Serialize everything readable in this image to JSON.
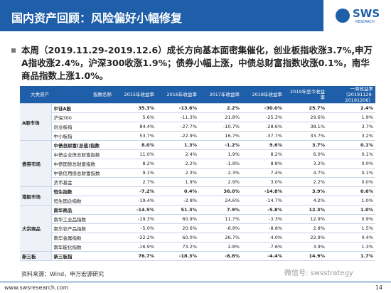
{
  "header": {
    "title": "国内资产回顾：风险偏好小幅修复",
    "logo": "SWS",
    "logo_sub": "RESEARCH"
  },
  "bullet": "本周（2019.11.29-2019.12.6）成长方向基本面密集催化，创业板指收涨3.7%,申万A指收涨2.4%，沪深300收涨1.9%；债券小幅上涨，中债总财富指数收涨0.1%，南华商品指数上涨1.0%。",
  "table": {
    "columns": [
      "大类资产",
      "指数名称",
      "2015年收益率",
      "2016年收益率",
      "2017年收益率",
      "2018年收益率",
      "2019年至今收益率",
      "一周收益率（20191129-20191206）"
    ],
    "groups": [
      {
        "name": "A股市场",
        "rows": [
          [
            "中证A股",
            "35.3%",
            "-13.6%",
            "2.2%",
            "-30.0%",
            "25.7%",
            "2.4%"
          ],
          [
            "沪深300",
            "5.6%",
            "-11.3%",
            "21.8%",
            "-25.3%",
            "29.6%",
            "1.9%"
          ],
          [
            "创业板指",
            "84.4%",
            "-27.7%",
            "-10.7%",
            "-28.6%",
            "38.1%",
            "3.7%"
          ],
          [
            "中小板指",
            "53.7%",
            "-22.9%",
            "16.7%",
            "-37.7%",
            "33.7%",
            "3.2%"
          ]
        ]
      },
      {
        "name": "债券市场",
        "rows": [
          [
            "中债总财富(总值)指数",
            "8.0%",
            "1.3%",
            "-1.2%",
            "9.6%",
            "3.7%",
            "0.1%"
          ],
          [
            "中债企业债总财富指数",
            "11.0%",
            "2.4%",
            "1.9%",
            "8.2%",
            "6.0%",
            "0.1%"
          ],
          [
            "中债国债总财富指数",
            "8.2%",
            "2.2%",
            "-1.8%",
            "8.8%",
            "3.2%",
            "0.0%"
          ],
          [
            "中债信用债总财富指数",
            "9.1%",
            "2.3%",
            "2.3%",
            "7.4%",
            "4.7%",
            "0.1%"
          ],
          [
            "货币基金",
            "2.7%",
            "1.9%",
            "2.9%",
            "3.0%",
            "2.2%",
            "0.0%"
          ]
        ]
      },
      {
        "name": "港股市场",
        "rows": [
          [
            "恒生指数",
            "-7.2%",
            "0.4%",
            "36.0%",
            "-14.8%",
            "3.9%",
            "0.6%"
          ],
          [
            "恒生国企指数",
            "-19.4%",
            "-2.8%",
            "24.6%",
            "-14.7%",
            "4.2%",
            "1.0%"
          ]
        ]
      },
      {
        "name": "大宗商品",
        "rows": [
          [
            "南华商品",
            "-14.5%",
            "51.3%",
            "7.9%",
            "-5.8%",
            "12.3%",
            "1.0%"
          ],
          [
            "南华工业品指数",
            "-19.3%",
            "60.9%",
            "11.7%",
            "-3.3%",
            "12.9%",
            "0.9%"
          ],
          [
            "南华农产品指数",
            "-5.0%",
            "20.6%",
            "-6.8%",
            "-8.8%",
            "2.8%",
            "1.5%"
          ],
          [
            "南华金属指数",
            "-22.2%",
            "60.0%",
            "26.7%",
            "-4.0%",
            "22.9%",
            "0.4%"
          ],
          [
            "南华能化指数",
            "-16.9%",
            "73.2%",
            "2.8%",
            "-7.6%",
            "3.9%",
            "1.3%"
          ]
        ]
      },
      {
        "name": "新三板",
        "rows": [
          [
            "新三板指",
            "76.7%",
            "-18.3%",
            "-8.8%",
            "-4.4%",
            "14.9%",
            "1.7%"
          ]
        ]
      }
    ]
  },
  "source": "资料来源：Wind，申万宏源研究",
  "watermark": "微信号: swsstrategy",
  "footer": {
    "website": "www.swsresearch.com",
    "page": "14"
  }
}
